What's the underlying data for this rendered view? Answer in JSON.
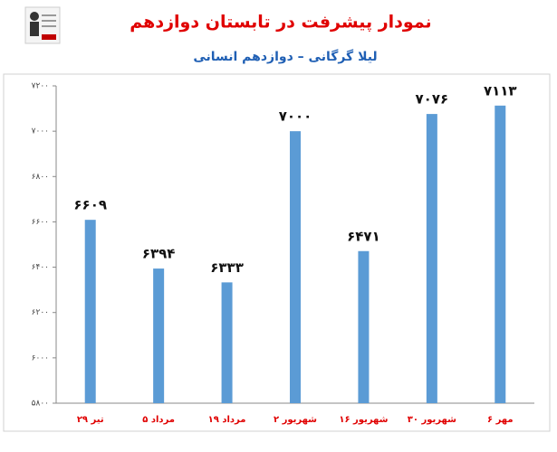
{
  "chart_data": {
    "type": "bar",
    "title": "نمودار پیشرفت در تابستان دوازدهم",
    "subtitle": "لیلا گرگانی – دوازدهم انسانی",
    "categories": [
      "۲۹ تیر",
      "۵ مرداد",
      "۱۹ مرداد",
      "۲ شهریور",
      "۱۶ شهریور",
      "۳۰ شهریور",
      "۶ مهر"
    ],
    "values": [
      6609,
      6394,
      6333,
      7000,
      6471,
      7076,
      7113
    ],
    "value_labels": [
      "۶۶۰۹",
      "۶۳۹۴",
      "۶۳۳۳",
      "۷۰۰۰",
      "۶۴۷۱",
      "۷۰۷۶",
      "۷۱۱۳"
    ],
    "color": "#5b9bd5",
    "ylim": [
      5800,
      7200
    ],
    "yticks": [
      {
        "value": 5800,
        "label": "۵۸۰۰"
      },
      {
        "value": 6000,
        "label": "۶۰۰۰"
      },
      {
        "value": 6200,
        "label": "۶۲۰۰"
      },
      {
        "value": 6400,
        "label": "۶۴۰۰"
      },
      {
        "value": 6600,
        "label": "۶۶۰۰"
      },
      {
        "value": 6800,
        "label": "۶۸۰۰"
      },
      {
        "value": 7000,
        "label": "۷۰۰۰"
      },
      {
        "value": 7200,
        "label": "۷۲۰۰"
      }
    ],
    "grid": false
  }
}
